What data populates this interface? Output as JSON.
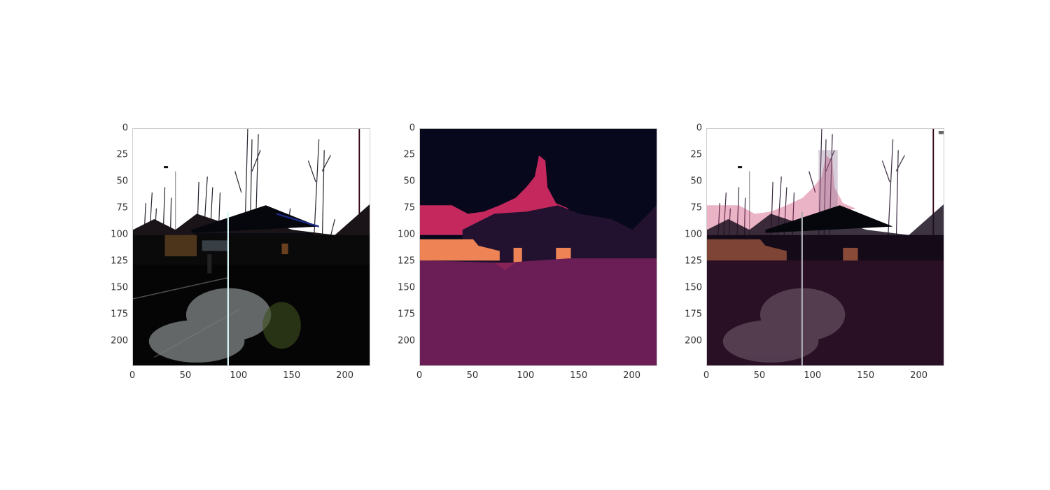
{
  "figure": {
    "panels": [
      {
        "id": "original-photo",
        "content": "photo of a gas-station canopy at dusk with bare trees, a wet road in the foreground",
        "x_ticks": [
          "0",
          "50",
          "100",
          "150",
          "200"
        ],
        "y_ticks": [
          "0",
          "25",
          "50",
          "75",
          "100",
          "125",
          "150",
          "175",
          "200"
        ]
      },
      {
        "id": "segmentation-map",
        "content": "segmentation label map",
        "x_ticks": [
          "0",
          "50",
          "100",
          "150",
          "200"
        ],
        "y_ticks": [
          "0",
          "25",
          "50",
          "75",
          "100",
          "125",
          "150",
          "175",
          "200"
        ]
      },
      {
        "id": "overlay",
        "content": "photo with segmentation overlay",
        "x_ticks": [
          "0",
          "50",
          "100",
          "150",
          "200"
        ],
        "y_ticks": [
          "0",
          "25",
          "50",
          "75",
          "100",
          "125",
          "150",
          "175",
          "200"
        ]
      }
    ],
    "axis_range": {
      "x": [
        0,
        224
      ],
      "y": [
        0,
        224
      ]
    },
    "colors": {
      "sky": "#ffffff",
      "dark": "#050505",
      "seg_sky": "#07081c",
      "seg_tree": "#c4285d",
      "seg_building": "#221230",
      "seg_orange": "#ee8455",
      "seg_road": "#6b1e55",
      "pole": "#cfeff0"
    }
  }
}
